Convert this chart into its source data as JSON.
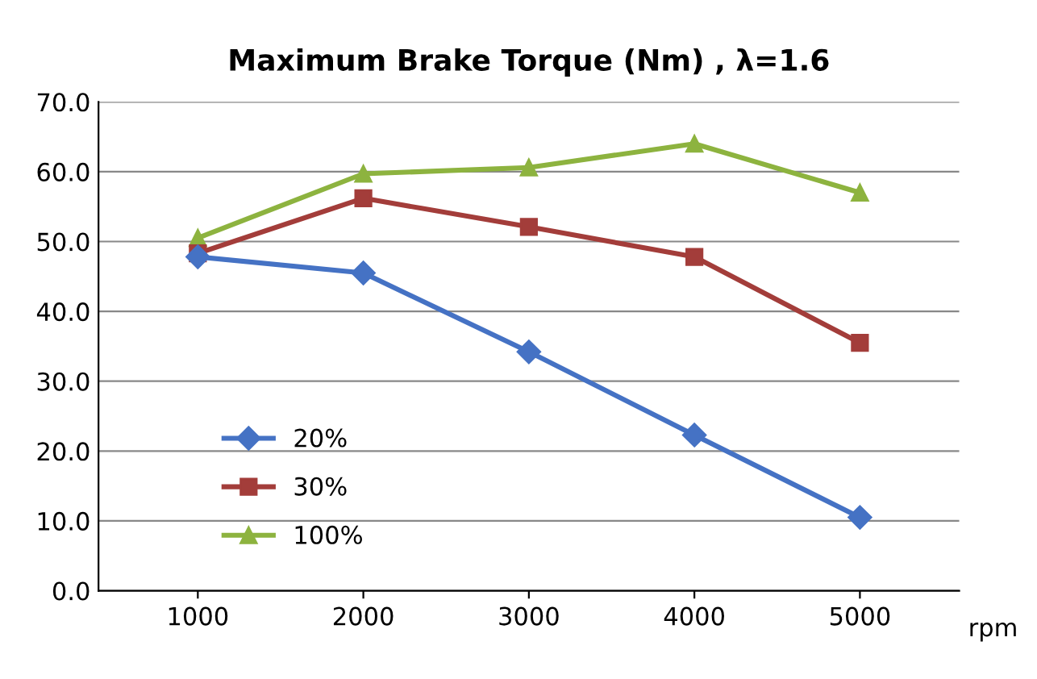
{
  "chart_data": {
    "type": "line",
    "title": "Maximum Brake Torque (Nm) , λ=1.6",
    "xlabel": "rpm",
    "categories": [
      "1000",
      "2000",
      "3000",
      "4000",
      "5000"
    ],
    "series": [
      {
        "name": "20%",
        "color": "#4572c4",
        "values": [
          47.8,
          45.5,
          34.2,
          22.3,
          10.5
        ],
        "marker": "diamond"
      },
      {
        "name": "30%",
        "color": "#a33d3a",
        "values": [
          48.3,
          56.2,
          52.1,
          47.8,
          35.5
        ],
        "marker": "square"
      },
      {
        "name": "100%",
        "color": "#8db33f",
        "values": [
          50.5,
          59.7,
          60.6,
          64.0,
          57.0
        ],
        "marker": "triangle"
      }
    ],
    "ylim": [
      0,
      70
    ],
    "yticks": [
      {
        "value": 0,
        "label": "0.0"
      },
      {
        "value": 10,
        "label": "10.0"
      },
      {
        "value": 20,
        "label": "20.0"
      },
      {
        "value": 30,
        "label": "30.0"
      },
      {
        "value": 40,
        "label": "40.0"
      },
      {
        "value": 50,
        "label": "50.0"
      },
      {
        "value": 60,
        "label": "60.0"
      },
      {
        "value": 70,
        "label": "70.0"
      }
    ],
    "grid": "y",
    "legend": "lower left",
    "line_style": "solid"
  }
}
